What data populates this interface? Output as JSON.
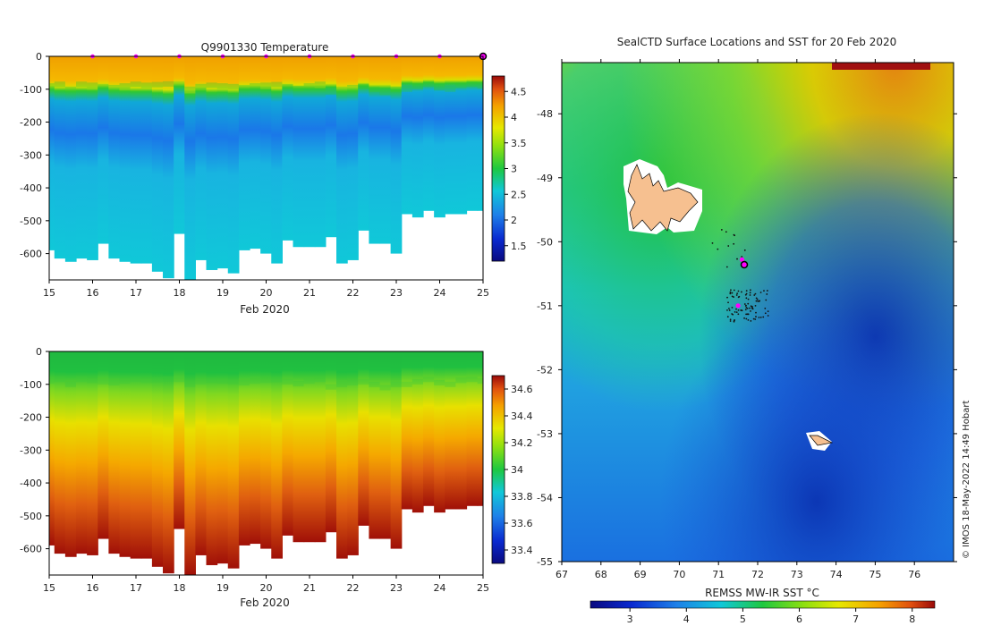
{
  "left_top": {
    "title": "Q9901330  Temperature",
    "xlabel": "Feb 2020",
    "yticks": [
      "0",
      "-100",
      "-200",
      "-300",
      "-400",
      "-500",
      "-600"
    ],
    "xticks": [
      "15",
      "16",
      "17",
      "18",
      "19",
      "20",
      "21",
      "22",
      "23",
      "24",
      "25"
    ],
    "colorbar_ticks": [
      "1.5",
      "2",
      "2.5",
      "3",
      "3.5",
      "4",
      "4.5"
    ]
  },
  "left_bottom": {
    "xlabel": "Feb 2020",
    "yticks": [
      "0",
      "-100",
      "-200",
      "-300",
      "-400",
      "-500",
      "-600"
    ],
    "xticks": [
      "15",
      "16",
      "17",
      "18",
      "19",
      "20",
      "21",
      "22",
      "23",
      "24",
      "25"
    ],
    "colorbar_ticks": [
      "33.4",
      "33.6",
      "33.8",
      "34",
      "34.2",
      "34.4",
      "34.6"
    ]
  },
  "map": {
    "title": "SealCTD Surface Locations and SST for 20 Feb 2020",
    "yticks": [
      "-48",
      "-49",
      "-50",
      "-51",
      "-52",
      "-53",
      "-54",
      "-55"
    ],
    "xticks": [
      "67",
      "68",
      "69",
      "70",
      "71",
      "72",
      "73",
      "74",
      "75",
      "76"
    ],
    "colorbar_label": "REMSS MW-IR SST °C",
    "colorbar_ticks": [
      "3",
      "4",
      "5",
      "6",
      "7",
      "8"
    ]
  },
  "copyright": "© IMOS 18-May-2022 14:49 Hobart",
  "chart_data": [
    {
      "type": "heatmap",
      "title": "Q9901330  Temperature",
      "xlabel": "Feb 2020",
      "ylabel": "",
      "xlim": [
        15,
        25
      ],
      "ylim": [
        -680,
        0
      ],
      "variable": "temperature",
      "colorbar_range": [
        1.2,
        4.8
      ],
      "profile_times": [
        15.0,
        15.25,
        15.5,
        15.75,
        16.0,
        16.25,
        16.5,
        16.75,
        17.0,
        17.25,
        17.5,
        17.75,
        18.0,
        18.25,
        18.5,
        18.75,
        19.0,
        19.25,
        19.5,
        19.75,
        20.0,
        20.25,
        20.5,
        20.75,
        21.0,
        21.25,
        21.5,
        21.75,
        22.0,
        22.25,
        22.5,
        22.75,
        23.0,
        23.25,
        23.5,
        23.75,
        24.0,
        24.25,
        24.5,
        24.75,
        25.0
      ],
      "profile_max_depth": [
        590,
        615,
        625,
        615,
        620,
        570,
        615,
        625,
        630,
        630,
        655,
        675,
        540,
        680,
        620,
        650,
        645,
        660,
        590,
        585,
        600,
        630,
        560,
        580,
        580,
        580,
        550,
        630,
        620,
        530,
        570,
        570,
        600,
        480,
        490,
        470,
        490,
        480,
        480,
        470,
        470
      ],
      "thermocline_depth": [
        90,
        85,
        100,
        85,
        88,
        92,
        95,
        90,
        85,
        88,
        86,
        84,
        85,
        100,
        92,
        88,
        90,
        92,
        95,
        90,
        88,
        86,
        92,
        98,
        90,
        85,
        108,
        100,
        95,
        92,
        100,
        110,
        100,
        100,
        92,
        85,
        95,
        100,
        88,
        85,
        90
      ],
      "surface_markers": [
        16,
        17,
        18,
        19,
        20,
        21,
        22,
        23,
        24,
        25
      ]
    },
    {
      "type": "heatmap",
      "title": "",
      "xlabel": "Feb 2020",
      "ylabel": "",
      "xlim": [
        15,
        25
      ],
      "ylim": [
        -680,
        0
      ],
      "variable": "salinity",
      "colorbar_range": [
        33.3,
        34.7
      ],
      "profile_times": [
        15.0,
        15.25,
        15.5,
        15.75,
        16.0,
        16.25,
        16.5,
        16.75,
        17.0,
        17.25,
        17.5,
        17.75,
        18.0,
        18.25,
        18.5,
        18.75,
        19.0,
        19.25,
        19.5,
        19.75,
        20.0,
        20.25,
        20.5,
        20.75,
        21.0,
        21.25,
        21.5,
        21.75,
        22.0,
        22.25,
        22.5,
        22.75,
        23.0,
        23.25,
        23.5,
        23.75,
        24.0,
        24.25,
        24.5,
        24.75,
        25.0
      ],
      "profile_max_depth": [
        590,
        615,
        625,
        615,
        620,
        570,
        615,
        625,
        630,
        630,
        655,
        675,
        540,
        680,
        620,
        650,
        645,
        660,
        590,
        585,
        600,
        630,
        560,
        580,
        580,
        580,
        550,
        630,
        620,
        530,
        570,
        570,
        600,
        480,
        490,
        470,
        490,
        480,
        480,
        470,
        470
      ],
      "halocline_depth": [
        90,
        85,
        100,
        85,
        88,
        92,
        95,
        90,
        85,
        88,
        86,
        84,
        85,
        100,
        92,
        88,
        90,
        92,
        95,
        90,
        88,
        86,
        92,
        98,
        90,
        85,
        108,
        100,
        95,
        92,
        100,
        110,
        100,
        100,
        92,
        85,
        95,
        100,
        88,
        85,
        90
      ]
    },
    {
      "type": "heatmap",
      "title": "SealCTD Surface Locations and SST for 20 Feb 2020",
      "xlabel": "",
      "ylabel": "",
      "xlim": [
        67,
        77
      ],
      "ylim": [
        -55,
        -47.2
      ],
      "colorbar_label": "REMSS MW-IR SST °C",
      "colorbar_range": [
        2.3,
        8.4
      ],
      "sst_gradient": "warm in north (~7-8 °C), cool in south-east (~3 °C)",
      "seal_track": {
        "cluster_center": [
          71.6,
          -51.0
        ],
        "magenta_highlights": [
          [
            71.6,
            -50.28
          ],
          [
            71.5,
            -51.0
          ]
        ]
      },
      "islands": [
        "Kerguelen",
        "Heard Island"
      ]
    }
  ]
}
